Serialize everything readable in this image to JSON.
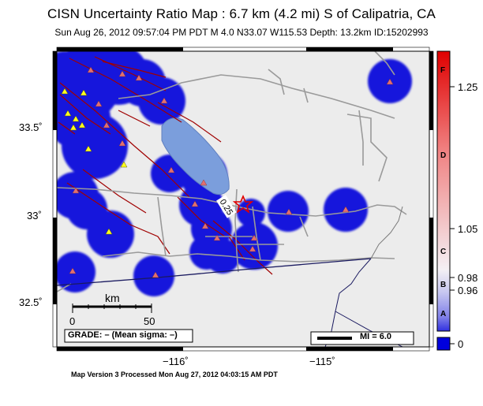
{
  "title": "CISN Uncertainty Ratio Map : 6.7 km (4.2 mi) S of Calipatria, CA",
  "subtitle": "Sun Aug 26, 2012 09:57:04 PM PDT   M 4.0   N33.07 W115.53   Depth: 13.2km   ID:15202993",
  "footer": "Map Version 3 Processed Mon Aug 27, 2012 04:03:15 AM PDT",
  "axes": {
    "lat_labels": [
      "33.5˚",
      "33˚",
      "32.5˚"
    ],
    "lon_labels": [
      "−116˚",
      "−115˚"
    ]
  },
  "scalebar": {
    "unit": "km",
    "min_label": "0",
    "max_label": "50"
  },
  "grade_box": "GRADE: – (Mean sigma: –)",
  "mi_legend": "MI = 6.0",
  "epicenter_label": "0.25",
  "colorbar": {
    "values": [
      "1.25",
      "1.05",
      "0.98",
      "0.96",
      "0"
    ],
    "grades": [
      "F",
      "D",
      "C",
      "B",
      "A"
    ],
    "colors": {
      "high": "#e00000",
      "mid": "#f4f0f4",
      "low": "#0000dd"
    }
  }
}
